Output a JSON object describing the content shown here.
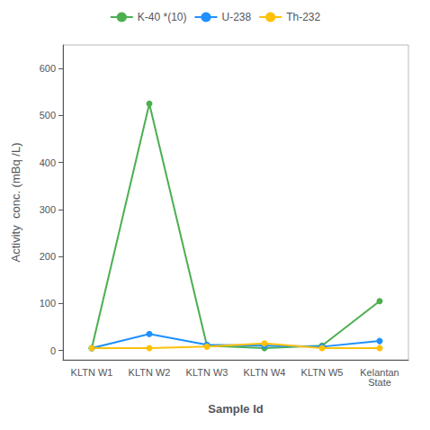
{
  "chart_data": {
    "type": "line",
    "xlabel": "Sample Id",
    "ylabel": "Activity  conc. (mBq /L)",
    "categories": [
      "KLTN W1",
      "KLTN W2",
      "KLTN W3",
      "KLTN W4",
      "KLTN W5",
      "Kelantan\nState"
    ],
    "series": [
      {
        "name": "K-40 *(10)",
        "color": "#4CAF50",
        "values": [
          5,
          525,
          10,
          5,
          10,
          105
        ]
      },
      {
        "name": "U-238",
        "color": "#1E90FF",
        "values": [
          5,
          35,
          12,
          10,
          8,
          20
        ]
      },
      {
        "name": "Th-232",
        "color": "#FFC107",
        "values": [
          5,
          5,
          8,
          15,
          5,
          5
        ]
      }
    ],
    "ylim": [
      -20,
      650
    ],
    "yticks": [
      0,
      100,
      200,
      300,
      400,
      500,
      600
    ],
    "grid": false,
    "legend": "top",
    "marker": "circle"
  }
}
